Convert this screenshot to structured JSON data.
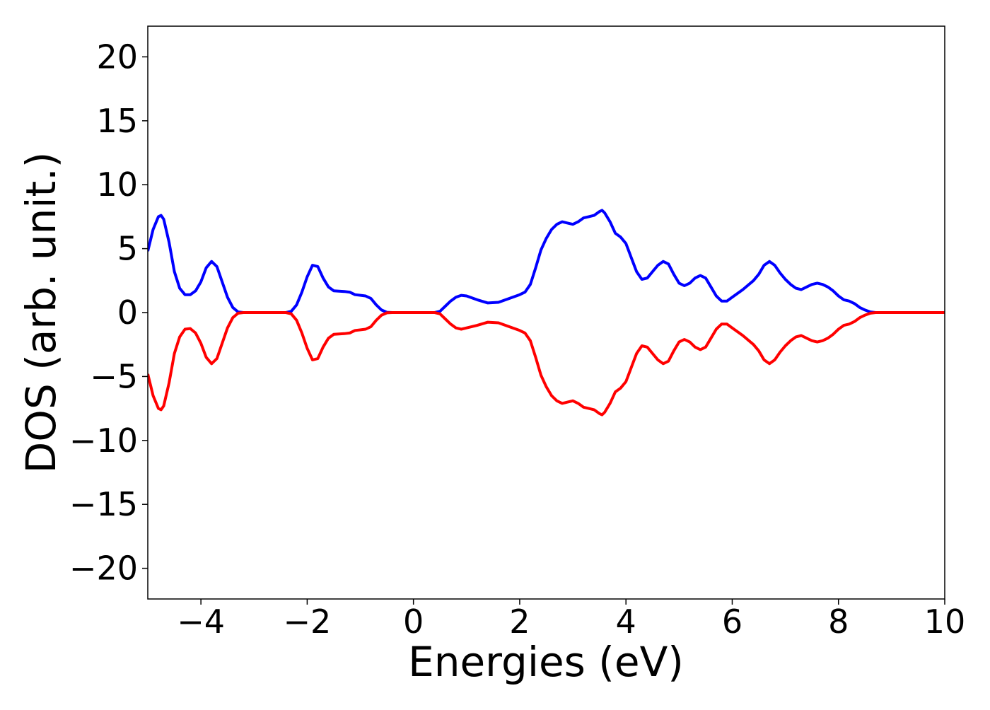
{
  "chart_data": {
    "type": "line",
    "xlabel": "Energies (eV)",
    "ylabel": "DOS (arb. unit.)",
    "x": [
      -5,
      -4.9,
      -4.8,
      -4.75,
      -4.7,
      -4.6,
      -4.5,
      -4.4,
      -4.3,
      -4.2,
      -4.1,
      -4.0,
      -3.9,
      -3.8,
      -3.7,
      -3.6,
      -3.5,
      -3.4,
      -3.3,
      -3.2,
      -2.4,
      -2.3,
      -2.2,
      -2.1,
      -2.0,
      -1.9,
      -1.8,
      -1.7,
      -1.6,
      -1.5,
      -1.3,
      -1.2,
      -1.1,
      -0.9,
      -0.8,
      -0.7,
      -0.6,
      -0.5,
      -0.4,
      0.4,
      0.5,
      0.6,
      0.7,
      0.8,
      0.9,
      1.0,
      1.2,
      1.4,
      1.6,
      1.8,
      2.0,
      2.1,
      2.2,
      2.3,
      2.4,
      2.5,
      2.6,
      2.7,
      2.8,
      2.9,
      3.0,
      3.1,
      3.2,
      3.3,
      3.4,
      3.5,
      3.55,
      3.6,
      3.7,
      3.8,
      3.9,
      4.0,
      4.1,
      4.2,
      4.3,
      4.4,
      4.5,
      4.6,
      4.7,
      4.8,
      4.9,
      5.0,
      5.1,
      5.2,
      5.3,
      5.4,
      5.5,
      5.6,
      5.7,
      5.8,
      5.9,
      6.0,
      6.2,
      6.4,
      6.5,
      6.6,
      6.7,
      6.8,
      6.9,
      7.0,
      7.1,
      7.2,
      7.3,
      7.4,
      7.5,
      7.6,
      7.7,
      7.8,
      7.9,
      8.0,
      8.1,
      8.2,
      8.3,
      8.4,
      8.5,
      8.6,
      8.7,
      10
    ],
    "series": [
      {
        "color": "#0000ff",
        "values": [
          4.8,
          6.5,
          7.5,
          7.6,
          7.3,
          5.5,
          3.2,
          1.9,
          1.4,
          1.4,
          1.7,
          2.4,
          3.5,
          4.0,
          3.6,
          2.4,
          1.2,
          0.4,
          0.05,
          0,
          0,
          0.1,
          0.6,
          1.6,
          2.8,
          3.7,
          3.6,
          2.7,
          2.0,
          1.7,
          1.65,
          1.6,
          1.4,
          1.3,
          1.1,
          0.6,
          0.2,
          0.02,
          0,
          0,
          0.1,
          0.5,
          0.9,
          1.2,
          1.35,
          1.3,
          1.0,
          0.75,
          0.8,
          1.1,
          1.4,
          1.6,
          2.2,
          3.5,
          4.9,
          5.8,
          6.5,
          6.9,
          7.1,
          7.0,
          6.9,
          7.1,
          7.4,
          7.5,
          7.6,
          7.9,
          8.0,
          7.8,
          7.1,
          6.2,
          5.9,
          5.4,
          4.3,
          3.2,
          2.6,
          2.7,
          3.2,
          3.7,
          4.0,
          3.8,
          3.0,
          2.3,
          2.1,
          2.3,
          2.7,
          2.9,
          2.7,
          2.0,
          1.3,
          0.9,
          0.9,
          1.2,
          1.8,
          2.5,
          3.0,
          3.7,
          4.0,
          3.7,
          3.1,
          2.6,
          2.2,
          1.9,
          1.8,
          2.0,
          2.2,
          2.3,
          2.2,
          2.0,
          1.7,
          1.3,
          1.0,
          0.9,
          0.7,
          0.4,
          0.2,
          0.05,
          0,
          0
        ]
      },
      {
        "color": "#ff0000",
        "values": [
          -4.8,
          -6.5,
          -7.5,
          -7.6,
          -7.3,
          -5.5,
          -3.2,
          -1.9,
          -1.3,
          -1.25,
          -1.6,
          -2.4,
          -3.5,
          -4.0,
          -3.6,
          -2.4,
          -1.2,
          -0.4,
          -0.05,
          0,
          0,
          -0.1,
          -0.6,
          -1.6,
          -2.8,
          -3.7,
          -3.6,
          -2.7,
          -2.0,
          -1.7,
          -1.65,
          -1.6,
          -1.4,
          -1.3,
          -1.1,
          -0.6,
          -0.2,
          -0.02,
          0,
          0,
          -0.1,
          -0.5,
          -0.9,
          -1.2,
          -1.3,
          -1.2,
          -1.0,
          -0.75,
          -0.8,
          -1.1,
          -1.4,
          -1.6,
          -2.2,
          -3.5,
          -4.9,
          -5.8,
          -6.5,
          -6.9,
          -7.1,
          -7.0,
          -6.9,
          -7.1,
          -7.4,
          -7.5,
          -7.6,
          -7.9,
          -8.0,
          -7.8,
          -7.1,
          -6.2,
          -5.9,
          -5.4,
          -4.3,
          -3.2,
          -2.6,
          -2.7,
          -3.2,
          -3.7,
          -4.0,
          -3.8,
          -3.0,
          -2.3,
          -2.1,
          -2.3,
          -2.7,
          -2.9,
          -2.7,
          -2.0,
          -1.3,
          -0.9,
          -0.9,
          -1.2,
          -1.8,
          -2.5,
          -3.0,
          -3.7,
          -4.0,
          -3.7,
          -3.1,
          -2.6,
          -2.2,
          -1.9,
          -1.8,
          -2.0,
          -2.2,
          -2.3,
          -2.2,
          -2.0,
          -1.7,
          -1.3,
          -1.0,
          -0.9,
          -0.7,
          -0.4,
          -0.2,
          -0.05,
          0,
          0
        ]
      }
    ],
    "xlim": [
      -5,
      10
    ],
    "xticks": [
      {
        "value": -4,
        "label": "−4"
      },
      {
        "value": -2,
        "label": "−2"
      },
      0,
      2,
      4,
      6,
      8,
      10
    ],
    "ylim": [
      -22.4,
      22.4
    ],
    "yticks": [
      {
        "value": -20,
        "label": "−20"
      },
      {
        "value": -15,
        "label": "−15"
      },
      {
        "value": -10,
        "label": "−10"
      },
      {
        "value": -5,
        "label": "−5"
      },
      0,
      5,
      10,
      15,
      20
    ],
    "grid": false
  }
}
